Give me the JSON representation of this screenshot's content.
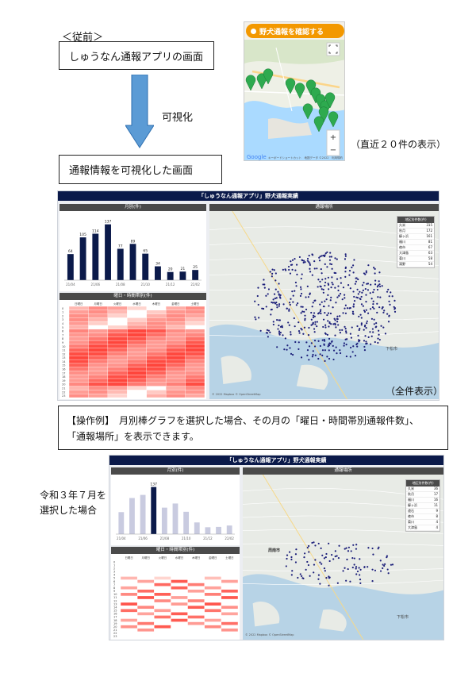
{
  "before": {
    "label": "＜従前＞",
    "app_screen": "しゅうなん通報アプリの画面",
    "visualize": "可視化",
    "visualized_screen": "通報情報を可視化した画面",
    "recent_note": "（直近２０件の表示）",
    "all_note": "（全件表示）"
  },
  "phone": {
    "button": "野犬通報を確認する",
    "google": "Google",
    "attribution": "キーボードショートカット　地図データ ©2022　利用規約",
    "zoom_in": "+",
    "zoom_out": "−"
  },
  "dash1": {
    "title": "「しゅうなん通報アプリ」野犬通報実績",
    "monthly_title": "月別(件)",
    "map_title": "通報場所",
    "heat_title": "曜日・時間帯別(件)",
    "map_footer": "© 2022 Mapbox © OpenStreetMap",
    "city": "下松市",
    "legend_title": "地区別件数(件)",
    "legend": [
      {
        "name": "久米",
        "value": "315"
      },
      {
        "name": "秋月",
        "value": "172"
      },
      {
        "name": "櫛ヶ浜",
        "value": "161"
      },
      {
        "name": "福川",
        "value": "81"
      },
      {
        "name": "夜市",
        "value": "67"
      },
      {
        "name": "大津島",
        "value": "63"
      },
      {
        "name": "菊川",
        "value": "58"
      },
      {
        "name": "湯野",
        "value": "54"
      }
    ]
  },
  "operation": {
    "line1": "【操作例】　月別棒グラフを選択した場合、その月の「曜日・時間帯別通報件数」、",
    "line2": "「通報場所」を表示できます。"
  },
  "selected_note_line1": "令和３年７月を",
  "selected_note_line2": "選択した場合",
  "dash2": {
    "title": "「しゅうなん通報アプリ」野犬通報実績",
    "monthly_title": "月別(件)",
    "map_title": "通報場所",
    "heat_title": "曜日・時間帯別(件)",
    "map_footer": "© 2022 Mapbox © OpenStreetMap",
    "city": "周南市",
    "city2": "下松市",
    "legend_title": "地区別件数(件)",
    "legend": [
      {
        "name": "久米",
        "value": "36"
      },
      {
        "name": "秋月",
        "value": "17"
      },
      {
        "name": "福川",
        "value": "16"
      },
      {
        "name": "櫛ヶ浜",
        "value": "11"
      },
      {
        "name": "遠石",
        "value": "9"
      },
      {
        "name": "夜市",
        "value": "8"
      },
      {
        "name": "菊川",
        "value": "4"
      },
      {
        "name": "大津島",
        "value": "4"
      }
    ]
  },
  "chart_data": [
    {
      "type": "bar",
      "title": "月別(件)",
      "categories": [
        "21/04",
        "21/05",
        "21/06",
        "21/07",
        "21/08",
        "21/09",
        "21/10",
        "21/11",
        "21/12",
        "22/01",
        "22/02"
      ],
      "tick_labels": [
        "21/04",
        "21/06",
        "21/08",
        "21/10",
        "21/12",
        "22/02"
      ],
      "values": [
        64,
        105,
        114,
        137,
        77,
        89,
        65,
        34,
        20,
        21,
        25
      ],
      "ylim": [
        0,
        150
      ],
      "color": "#0b1a4a"
    },
    {
      "type": "heatmap",
      "title": "曜日・時間帯別(件)",
      "columns": [
        "日曜日",
        "月曜日",
        "火曜日",
        "水曜日",
        "木曜日",
        "金曜日",
        "土曜日"
      ],
      "rows": [
        "0",
        "1",
        "2",
        "3",
        "4",
        "5",
        "6",
        "7",
        "8",
        "9",
        "10",
        "11",
        "12",
        "13",
        "14",
        "15",
        "16",
        "17",
        "18",
        "19",
        "20",
        "21",
        "22",
        "23"
      ]
    }
  ]
}
